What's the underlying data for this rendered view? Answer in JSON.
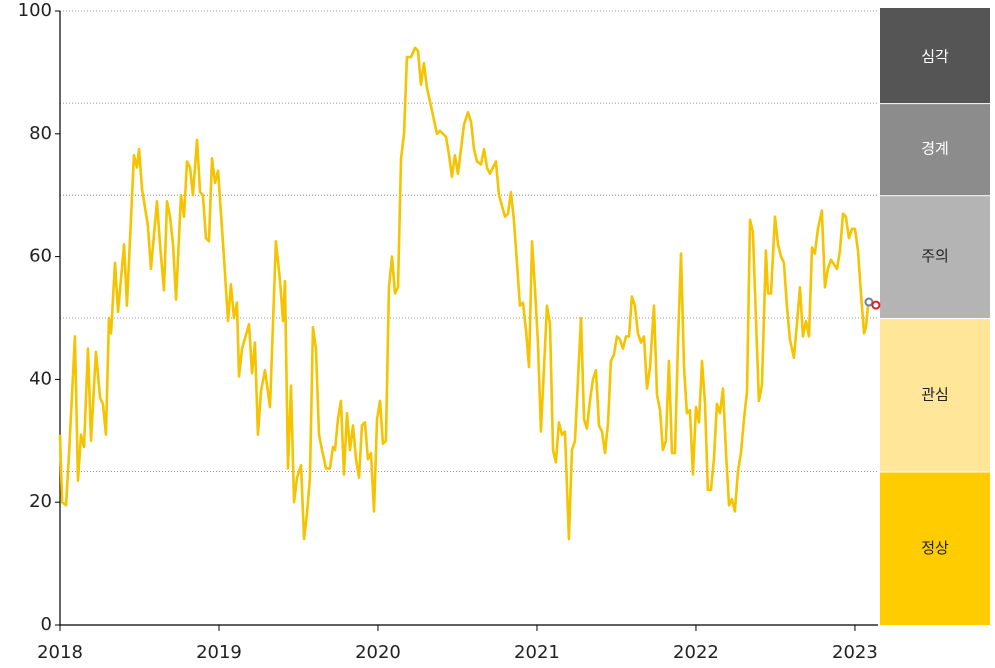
{
  "chart_data": {
    "type": "line",
    "color": "#f5c400",
    "xlim": [
      2018,
      2023.145
    ],
    "xticks": [
      2018,
      2019,
      2020,
      2021,
      2022,
      2023
    ],
    "ylim": [
      0,
      100
    ],
    "yticks": [
      0,
      20,
      40,
      60,
      80,
      100
    ],
    "bands": [
      {
        "label": "심각",
        "from": 85,
        "to": 100,
        "color": "#555555",
        "text_color": "#ffffff"
      },
      {
        "label": "경계",
        "from": 70,
        "to": 85,
        "color": "#8c8c8c",
        "text_color": "#ffffff"
      },
      {
        "label": "주의",
        "from": 50,
        "to": 70,
        "color": "#b4b4b4",
        "text_color": "#222222"
      },
      {
        "label": "관심",
        "from": 25,
        "to": 50,
        "color": "#ffe699",
        "text_color": "#222222"
      },
      {
        "label": "정상",
        "from": 0,
        "to": 25,
        "color": "#ffcc00",
        "text_color": "#222222"
      }
    ],
    "markers": [
      {
        "x": 2023.088,
        "value": 52.6,
        "color": "#6b7fa8"
      },
      {
        "x": 2023.132,
        "value": 52.1,
        "color": "#e0201b"
      }
    ],
    "x": [
      2018,
      2018.013,
      2018.038,
      2018.057,
      2018.094,
      2018.113,
      2018.132,
      2018.151,
      2018.176,
      2018.195,
      2018.226,
      2018.252,
      2018.27,
      2018.289,
      2018.308,
      2018.321,
      2018.346,
      2018.365,
      2018.403,
      2018.421,
      2018.465,
      2018.484,
      2018.497,
      2018.516,
      2018.553,
      2018.572,
      2018.61,
      2018.629,
      2018.654,
      2018.673,
      2018.692,
      2018.711,
      2018.73,
      2018.761,
      2018.78,
      2018.799,
      2018.818,
      2018.836,
      2018.862,
      2018.881,
      2018.899,
      2018.918,
      2018.937,
      2018.956,
      2018.975,
      2018.994,
      2019.031,
      2019.057,
      2019.075,
      2019.094,
      2019.113,
      2019.126,
      2019.145,
      2019.189,
      2019.208,
      2019.226,
      2019.245,
      2019.264,
      2019.289,
      2019.321,
      2019.358,
      2019.384,
      2019.403,
      2019.415,
      2019.434,
      2019.453,
      2019.472,
      2019.491,
      2019.516,
      2019.535,
      2019.553,
      2019.572,
      2019.591,
      2019.61,
      2019.629,
      2019.648,
      2019.673,
      2019.698,
      2019.717,
      2019.73,
      2019.748,
      2019.767,
      2019.786,
      2019.805,
      2019.824,
      2019.843,
      2019.862,
      2019.881,
      2019.899,
      2019.918,
      2019.937,
      2019.956,
      2019.975,
      2019.994,
      2020.013,
      2020.031,
      2020.05,
      2020.069,
      2020.088,
      2020.107,
      2020.126,
      2020.145,
      2020.164,
      2020.182,
      2020.208,
      2020.233,
      2020.252,
      2020.27,
      2020.289,
      2020.308,
      2020.346,
      2020.371,
      2020.39,
      2020.428,
      2020.447,
      2020.465,
      2020.484,
      2020.503,
      2020.541,
      2020.566,
      2020.585,
      2020.604,
      2020.623,
      2020.648,
      2020.667,
      2020.686,
      2020.704,
      2020.742,
      2020.761,
      2020.799,
      2020.818,
      2020.836,
      2020.855,
      2020.893,
      2020.912,
      2020.931,
      2020.95,
      2020.969,
      2020.987,
      2021.006,
      2021.025,
      2021.063,
      2021.082,
      2021.101,
      2021.119,
      2021.138,
      2021.157,
      2021.176,
      2021.201,
      2021.22,
      2021.239,
      2021.277,
      2021.296,
      2021.314,
      2021.333,
      2021.352,
      2021.371,
      2021.39,
      2021.409,
      2021.428,
      2021.447,
      2021.465,
      2021.484,
      2021.503,
      2021.522,
      2021.541,
      2021.56,
      2021.579,
      2021.597,
      2021.616,
      2021.635,
      2021.654,
      2021.673,
      2021.692,
      2021.711,
      2021.736,
      2021.755,
      2021.774,
      2021.792,
      2021.811,
      2021.83,
      2021.849,
      2021.868,
      2021.887,
      2021.906,
      2021.925,
      2021.943,
      2021.962,
      2021.981,
      2022,
      2022.019,
      2022.038,
      2022.057,
      2022.075,
      2022.094,
      2022.113,
      2022.132,
      2022.151,
      2022.17,
      2022.189,
      2022.208,
      2022.226,
      2022.245,
      2022.264,
      2022.283,
      2022.302,
      2022.321,
      2022.34,
      2022.358,
      2022.377,
      2022.396,
      2022.415,
      2022.44,
      2022.453,
      2022.472,
      2022.497,
      2022.516,
      2022.535,
      2022.553,
      2022.572,
      2022.591,
      2022.616,
      2022.635,
      2022.654,
      2022.673,
      2022.692,
      2022.711,
      2022.73,
      2022.748,
      2022.767,
      2022.792,
      2022.811,
      2022.83,
      2022.849,
      2022.887,
      2022.906,
      2022.925,
      2022.943,
      2022.962,
      2022.981,
      2023,
      2023.019,
      2023.038,
      2023.057,
      2023.069,
      2023.082
    ],
    "values": [
      31,
      20,
      19.5,
      28,
      47,
      23.5,
      31,
      29,
      45,
      30,
      44.5,
      37,
      36,
      31,
      50,
      47.5,
      59,
      51,
      62,
      52,
      76.5,
      74.5,
      77.5,
      71,
      65,
      58,
      69,
      62,
      54.5,
      69,
      66.5,
      62,
      53,
      70,
      66.5,
      75.5,
      74.5,
      70,
      79,
      70.5,
      70,
      63,
      62.5,
      76,
      72,
      74,
      60,
      49.5,
      55.5,
      50,
      52.5,
      40.5,
      45,
      49,
      41,
      46,
      31,
      38,
      41.5,
      35.5,
      62.5,
      56,
      49.5,
      56,
      25.5,
      39,
      20,
      24,
      26,
      14,
      18,
      24,
      48.5,
      45,
      31,
      28.5,
      25.5,
      25.5,
      29,
      28.5,
      33.5,
      36.5,
      24.5,
      34.5,
      28.5,
      32.5,
      27,
      24,
      32.5,
      33,
      27,
      28,
      18.5,
      33.5,
      36.5,
      29.5,
      30,
      55,
      60,
      54,
      55,
      76,
      80,
      92.5,
      92.5,
      94,
      93.5,
      88,
      91.5,
      87.5,
      83,
      80,
      80.5,
      79.5,
      76.5,
      73,
      76.5,
      73.5,
      81.5,
      83.5,
      82,
      77.5,
      75.5,
      75,
      77.5,
      74.5,
      73.5,
      75.5,
      70,
      66.5,
      67,
      70.5,
      66,
      52,
      52.5,
      48,
      42,
      62.5,
      55,
      46,
      31.5,
      52,
      49,
      28.5,
      26.5,
      33,
      31,
      31.5,
      14,
      28.5,
      30,
      50,
      33.5,
      32,
      36.5,
      40,
      41.5,
      32.5,
      31.5,
      28,
      33,
      43,
      44,
      47,
      46.5,
      45,
      47,
      47,
      53.5,
      52,
      47.5,
      46,
      47,
      38.5,
      42,
      52,
      37.5,
      35,
      28.5,
      30,
      43,
      28,
      28,
      46,
      60.5,
      42,
      34.5,
      35,
      24.5,
      35.5,
      33,
      43,
      36,
      22,
      22,
      27,
      36,
      34.5,
      38.5,
      28,
      19.5,
      20.5,
      18.5,
      25,
      28,
      33.5,
      38,
      66,
      64,
      50,
      36.5,
      39,
      61,
      54,
      54,
      66.5,
      62,
      60,
      59,
      52,
      46.5,
      43.5,
      49,
      55,
      47,
      49.5,
      47,
      61.5,
      60.5,
      64.5,
      67.5,
      55,
      58,
      59.5,
      58,
      61,
      67,
      66.5,
      63,
      64.5,
      64.5,
      61,
      54,
      47.5,
      48.5,
      52
    ]
  }
}
